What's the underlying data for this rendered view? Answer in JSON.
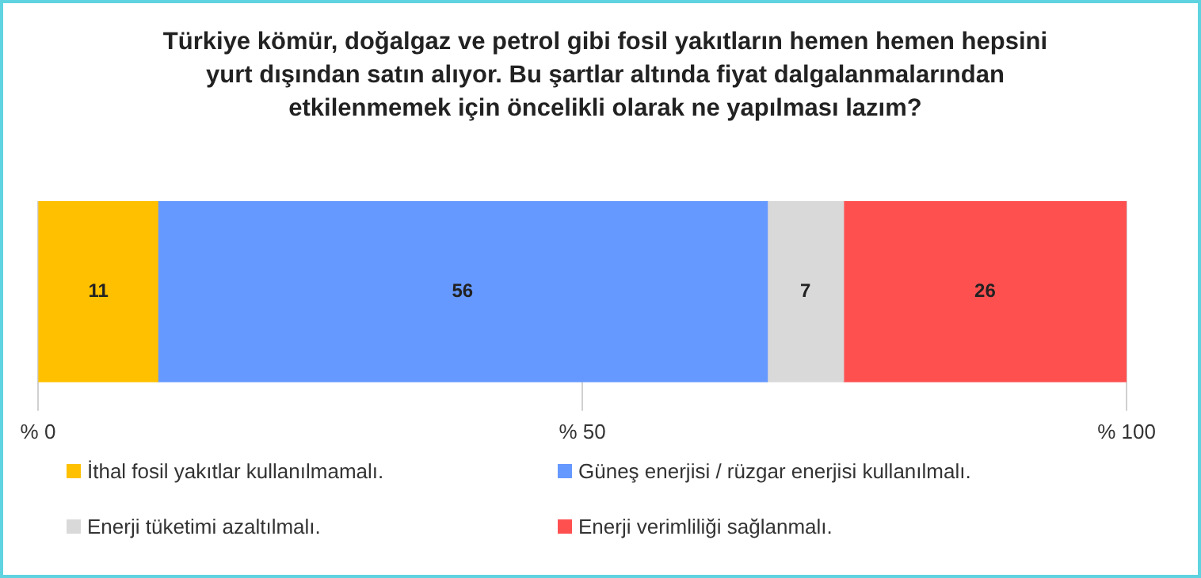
{
  "chart_data": {
    "type": "bar",
    "orientation": "horizontal",
    "stacked": true,
    "title": "Türkiye kömür, doğalgaz ve petrol gibi fosil yakıtların hemen hemen hepsini yurt dışından satın alıyor. Bu şartlar altında fiyat dalgalanmalarından etkilenmemek için öncelikli olarak ne yapılması lazım?",
    "categories": [
      null
    ],
    "series": [
      {
        "name": "İthal fosil yakıtlar kullanılmamalı.",
        "color": "#ffc000",
        "values": [
          11
        ]
      },
      {
        "name": "Güneş enerjisi / rüzgar enerjisi kullanılmalı.",
        "color": "#6699ff",
        "values": [
          56
        ]
      },
      {
        "name": "Enerji tüketimi azaltılmalı.",
        "color": "#d9d9d9",
        "values": [
          7
        ]
      },
      {
        "name": "Enerji verimliliği sağlanmalı.",
        "color": "#ff5050",
        "values": [
          26
        ]
      }
    ],
    "xlim": [
      0,
      100
    ],
    "xticks": [
      {
        "value": 0,
        "label": "% 0"
      },
      {
        "value": 50,
        "label": "% 50"
      },
      {
        "value": 100,
        "label": "% 100"
      }
    ],
    "grid": "x",
    "legend": "bottom",
    "data_labels": true
  }
}
